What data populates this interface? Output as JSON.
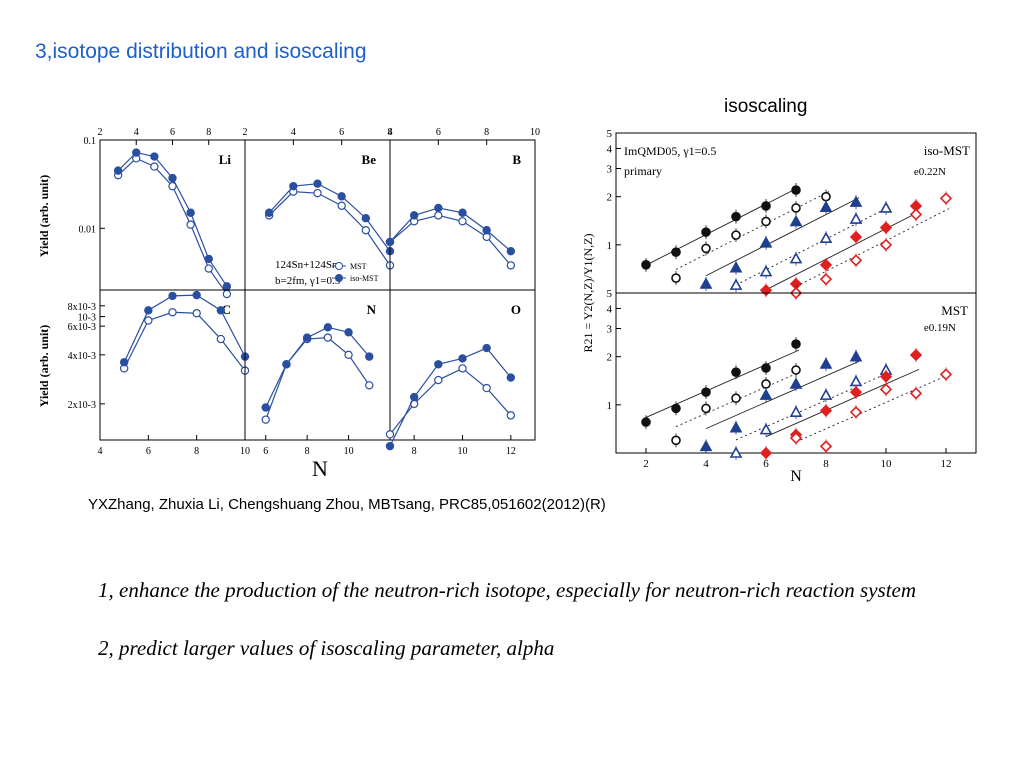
{
  "slide": {
    "title": "3,isotope distribution and isoscaling",
    "subtitle": "isoscaling",
    "citation": "YXZhang, Zhuxia Li, Chengshuang Zhou, MBTsang, PRC85,051602(2012)(R)",
    "bullets": [
      "1, enhance the production of the neutron-rich isotope, especially for neutron-rich reaction system",
      "2, predict larger values of isoscaling parameter, alpha"
    ]
  },
  "colors": {
    "title": "#1f5fc8",
    "series": "#2b4fa0",
    "black": "#111111",
    "navy": "#1f3f8f",
    "red": "#e02020"
  },
  "chart_data": [
    {
      "type": "scatter",
      "figure": "isotope-distribution",
      "ylabel": "Yield (arb. unit)",
      "xlabel": "N",
      "yscale": "log",
      "legend": {
        "placement": "center-right",
        "entries": [
          "MST",
          "iso-MST"
        ]
      },
      "annotation_lines": [
        "124Sn+124Sn,",
        "b=2fm, γ1=0.5"
      ],
      "top_ylim": [
        0.002,
        0.1
      ],
      "top_yticks": [
        {
          "v": 0.1,
          "t": "0.1"
        },
        {
          "v": 0.01,
          "t": "0.01"
        },
        {
          "v": 0.001,
          "t": "10-3"
        }
      ],
      "bottom_ylim": [
        0.0012,
        0.01
      ],
      "bottom_yticks": [
        {
          "v": 0.008,
          "t": "8x10-3"
        },
        {
          "v": 0.006,
          "t": "6x10-3"
        },
        {
          "v": 0.004,
          "t": "4x10-3"
        },
        {
          "v": 0.002,
          "t": "2x10-3"
        }
      ],
      "panels": [
        {
          "element": "Li",
          "row": 0,
          "xlim": [
            2,
            10
          ],
          "xticks": [
            2,
            4,
            6,
            8
          ],
          "xticks_at": "top",
          "series": [
            {
              "name": "MST",
              "x": [
                3,
                4,
                5,
                6,
                7,
                8,
                9
              ],
              "y": [
                0.04,
                0.062,
                0.05,
                0.03,
                0.011,
                0.0035,
                0.0018
              ]
            },
            {
              "name": "iso-MST",
              "x": [
                3,
                4,
                5,
                6,
                7,
                8,
                9
              ],
              "y": [
                0.045,
                0.072,
                0.065,
                0.037,
                0.015,
                0.0045,
                0.0022
              ]
            }
          ]
        },
        {
          "element": "Be",
          "row": 0,
          "xlim": [
            2,
            8
          ],
          "xticks": [
            2,
            4,
            6,
            8
          ],
          "xticks_at": "top",
          "series": [
            {
              "name": "MST",
              "x": [
                3,
                4,
                5,
                6,
                7,
                8
              ],
              "y": [
                0.014,
                0.026,
                0.025,
                0.018,
                0.0095,
                0.0038
              ]
            },
            {
              "name": "iso-MST",
              "x": [
                3,
                4,
                5,
                6,
                7,
                8
              ],
              "y": [
                0.015,
                0.03,
                0.032,
                0.023,
                0.013,
                0.0055
              ]
            }
          ]
        },
        {
          "element": "B",
          "row": 0,
          "xlim": [
            4,
            10
          ],
          "xticks": [
            4,
            6,
            8,
            10
          ],
          "xticks_at": "top",
          "series": [
            {
              "name": "MST",
              "x": [
                4,
                5,
                6,
                7,
                8,
                9
              ],
              "y": [
                0.007,
                0.012,
                0.014,
                0.012,
                0.008,
                0.0038
              ]
            },
            {
              "name": "iso-MST",
              "x": [
                4,
                5,
                6,
                7,
                8,
                9
              ],
              "y": [
                0.007,
                0.014,
                0.017,
                0.015,
                0.0095,
                0.0055
              ]
            }
          ]
        },
        {
          "element": "C",
          "row": 1,
          "xlim": [
            4,
            10
          ],
          "xticks": [
            4,
            6,
            8,
            10
          ],
          "xticks_at": "bottom",
          "series": [
            {
              "name": "MST",
              "x": [
                5,
                6,
                7,
                8,
                9,
                10
              ],
              "y": [
                0.0033,
                0.0065,
                0.0073,
                0.0072,
                0.005,
                0.0032
              ]
            },
            {
              "name": "iso-MST",
              "x": [
                5,
                6,
                7,
                8,
                9,
                10
              ],
              "y": [
                0.0036,
                0.0075,
                0.0092,
                0.0093,
                0.0075,
                0.0039
              ]
            }
          ]
        },
        {
          "element": "N",
          "row": 1,
          "xlim": [
            5,
            12
          ],
          "xticks": [
            6,
            8,
            10
          ],
          "xticks_at": "bottom",
          "series": [
            {
              "name": "MST",
              "x": [
                6,
                7,
                8,
                9,
                10,
                11
              ],
              "y": [
                0.0016,
                0.0035,
                0.005,
                0.0051,
                0.004,
                0.0026
              ]
            },
            {
              "name": "iso-MST",
              "x": [
                6,
                7,
                8,
                9,
                10,
                11
              ],
              "y": [
                0.0019,
                0.0035,
                0.0051,
                0.0059,
                0.0055,
                0.0039
              ]
            }
          ]
        },
        {
          "element": "O",
          "row": 1,
          "xlim": [
            7,
            13
          ],
          "xticks": [
            8,
            10,
            12
          ],
          "xticks_at": "bottom",
          "series": [
            {
              "name": "MST",
              "x": [
                7,
                8,
                9,
                10,
                11,
                12
              ],
              "y": [
                0.0013,
                0.002,
                0.0028,
                0.0033,
                0.0025,
                0.0017
              ]
            },
            {
              "name": "iso-MST",
              "x": [
                7,
                8,
                9,
                10,
                11,
                12
              ],
              "y": [
                0.0011,
                0.0022,
                0.0035,
                0.0038,
                0.0044,
                0.0029
              ]
            }
          ]
        }
      ]
    },
    {
      "type": "scatter",
      "figure": "isoscaling",
      "ylabel": "R21 = Y2(N,Z)/Y1(N,Z)",
      "xlabel": "N",
      "xlim": [
        1,
        13
      ],
      "xticks": [
        2,
        4,
        6,
        8,
        10,
        12
      ],
      "yscale": "log",
      "ylim": [
        0.5,
        5
      ],
      "yticks_top": [
        {
          "v": 5,
          "t": "5"
        },
        {
          "v": 4,
          "t": "4"
        },
        {
          "v": 3,
          "t": "3"
        },
        {
          "v": 2,
          "t": "2"
        },
        {
          "v": 1,
          "t": "1"
        }
      ],
      "yticks_bottom": [
        {
          "v": 5,
          "t": "5"
        },
        {
          "v": 4,
          "t": "4"
        },
        {
          "v": 3,
          "t": "3"
        },
        {
          "v": 2,
          "t": "2"
        },
        {
          "v": 1,
          "t": "1"
        }
      ],
      "top_labels": {
        "left": "ImQMD05, γ1=0.5",
        "left2": "primary",
        "right": "iso-MST",
        "formula": "e0.22N"
      },
      "bottom_labels": {
        "right": "MST",
        "formula": "e0.19N"
      },
      "panels": [
        {
          "name": "iso-MST",
          "fit_alpha": 0.22,
          "series": [
            {
              "color": "black",
              "shape": "circle",
              "filled": true,
              "x": [
                2,
                3,
                4,
                5,
                6,
                7
              ],
              "y": [
                0.75,
                0.9,
                1.2,
                1.5,
                1.75,
                2.2
              ]
            },
            {
              "color": "black",
              "shape": "circle",
              "filled": false,
              "x": [
                3,
                4,
                5,
                6,
                7,
                8
              ],
              "y": [
                0.62,
                0.95,
                1.15,
                1.4,
                1.7,
                2.0
              ]
            },
            {
              "color": "navy",
              "shape": "triangle",
              "filled": true,
              "x": [
                4,
                5,
                6,
                7,
                8,
                9
              ],
              "y": [
                0.57,
                0.72,
                1.03,
                1.4,
                1.72,
                1.85
              ]
            },
            {
              "color": "navy",
              "shape": "triangle",
              "filled": false,
              "x": [
                5,
                6,
                7,
                8,
                9,
                10
              ],
              "y": [
                0.56,
                0.68,
                0.82,
                1.1,
                1.45,
                1.7
              ]
            },
            {
              "color": "red",
              "shape": "diamond",
              "filled": true,
              "x": [
                6,
                7,
                8,
                9,
                10,
                11
              ],
              "y": [
                0.52,
                0.57,
                0.75,
                1.12,
                1.28,
                1.75
              ]
            },
            {
              "color": "red",
              "shape": "diamond",
              "filled": false,
              "x": [
                7,
                8,
                9,
                10,
                11,
                12
              ],
              "y": [
                0.5,
                0.61,
                0.8,
                1.0,
                1.55,
                1.95
              ]
            }
          ]
        },
        {
          "name": "MST",
          "fit_alpha": 0.19,
          "series": [
            {
              "color": "black",
              "shape": "circle",
              "filled": true,
              "x": [
                2,
                3,
                4,
                5,
                6,
                7
              ],
              "y": [
                0.78,
                0.95,
                1.2,
                1.6,
                1.7,
                2.4
              ]
            },
            {
              "color": "black",
              "shape": "circle",
              "filled": false,
              "x": [
                3,
                4,
                5,
                6,
                7
              ],
              "y": [
                0.6,
                0.95,
                1.1,
                1.35,
                1.65
              ]
            },
            {
              "color": "navy",
              "shape": "triangle",
              "filled": true,
              "x": [
                4,
                5,
                6,
                7,
                8,
                9
              ],
              "y": [
                0.55,
                0.72,
                1.15,
                1.35,
                1.8,
                2.0
              ]
            },
            {
              "color": "navy",
              "shape": "triangle",
              "filled": false,
              "x": [
                5,
                6,
                7,
                8,
                9,
                10
              ],
              "y": [
                0.5,
                0.7,
                0.9,
                1.15,
                1.4,
                1.65
              ]
            },
            {
              "color": "red",
              "shape": "diamond",
              "filled": true,
              "x": [
                6,
                7,
                8,
                9,
                10,
                11
              ],
              "y": [
                0.5,
                0.65,
                0.92,
                1.2,
                1.5,
                2.05
              ]
            },
            {
              "color": "red",
              "shape": "diamond",
              "filled": false,
              "x": [
                7,
                8,
                9,
                10,
                11,
                12
              ],
              "y": [
                0.62,
                0.55,
                0.9,
                1.25,
                1.18,
                1.55
              ]
            }
          ]
        }
      ]
    }
  ]
}
